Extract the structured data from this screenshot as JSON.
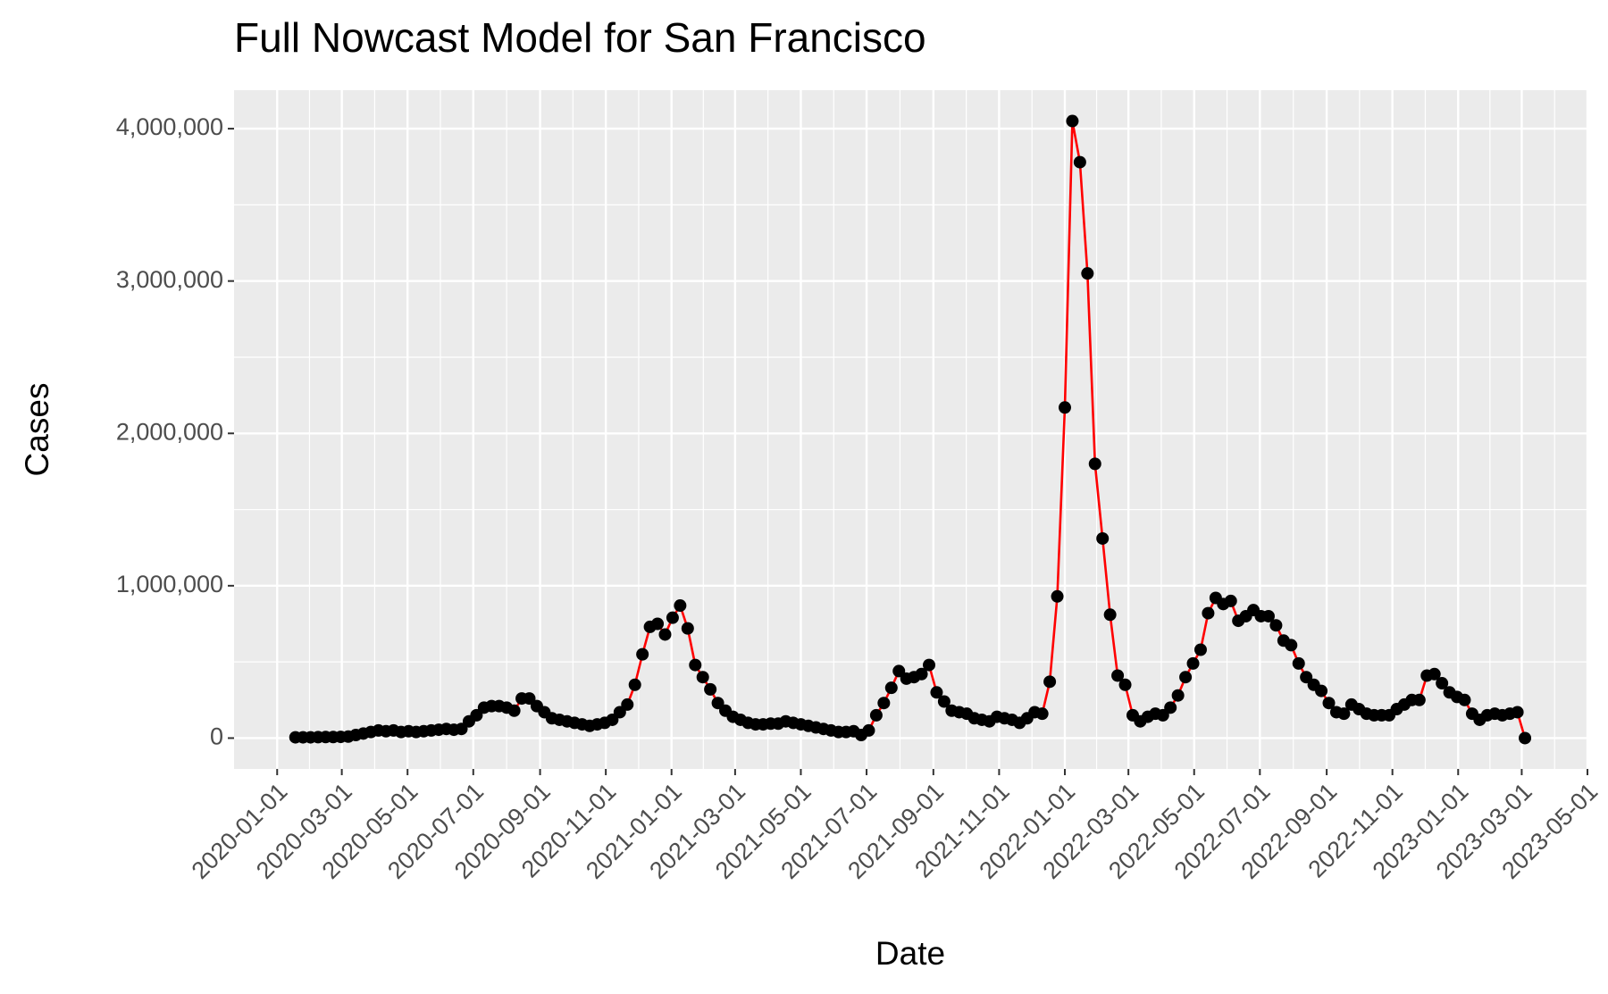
{
  "chart_data": {
    "type": "line",
    "title": "Full Nowcast Model for San Francisco",
    "x_label": "Date",
    "y_label": "Cases",
    "line_color": "#ff0000",
    "marker_color": "#000000",
    "markers": true,
    "grid": true,
    "minor_grid": true,
    "x": [
      "2020-01-18",
      "2020-01-25",
      "2020-02-01",
      "2020-02-08",
      "2020-02-15",
      "2020-02-22",
      "2020-02-29",
      "2020-03-07",
      "2020-03-14",
      "2020-03-21",
      "2020-03-28",
      "2020-04-04",
      "2020-04-11",
      "2020-04-18",
      "2020-04-25",
      "2020-05-02",
      "2020-05-09",
      "2020-05-16",
      "2020-05-23",
      "2020-05-30",
      "2020-06-06",
      "2020-06-13",
      "2020-06-20",
      "2020-06-27",
      "2020-07-04",
      "2020-07-11",
      "2020-07-18",
      "2020-07-25",
      "2020-08-01",
      "2020-08-08",
      "2020-08-15",
      "2020-08-22",
      "2020-08-29",
      "2020-09-05",
      "2020-09-12",
      "2020-09-19",
      "2020-09-26",
      "2020-10-03",
      "2020-10-10",
      "2020-10-17",
      "2020-10-24",
      "2020-10-31",
      "2020-11-07",
      "2020-11-14",
      "2020-11-21",
      "2020-11-28",
      "2020-12-05",
      "2020-12-12",
      "2020-12-19",
      "2020-12-26",
      "2021-01-02",
      "2021-01-09",
      "2021-01-16",
      "2021-01-23",
      "2021-01-30",
      "2021-02-06",
      "2021-02-13",
      "2021-02-20",
      "2021-02-27",
      "2021-03-06",
      "2021-03-13",
      "2021-03-20",
      "2021-03-27",
      "2021-04-03",
      "2021-04-10",
      "2021-04-17",
      "2021-04-24",
      "2021-05-01",
      "2021-05-08",
      "2021-05-15",
      "2021-05-22",
      "2021-05-29",
      "2021-06-05",
      "2021-06-12",
      "2021-06-19",
      "2021-06-26",
      "2021-07-03",
      "2021-07-10",
      "2021-07-17",
      "2021-07-24",
      "2021-07-31",
      "2021-08-07",
      "2021-08-14",
      "2021-08-21",
      "2021-08-28",
      "2021-09-04",
      "2021-09-11",
      "2021-09-18",
      "2021-09-25",
      "2021-10-02",
      "2021-10-09",
      "2021-10-16",
      "2021-10-23",
      "2021-10-30",
      "2021-11-06",
      "2021-11-13",
      "2021-11-20",
      "2021-11-27",
      "2021-12-04",
      "2021-12-11",
      "2021-12-18",
      "2021-12-25",
      "2022-01-01",
      "2022-01-08",
      "2022-01-15",
      "2022-01-22",
      "2022-01-29",
      "2022-02-05",
      "2022-02-12",
      "2022-02-19",
      "2022-02-26",
      "2022-03-05",
      "2022-03-12",
      "2022-03-19",
      "2022-03-26",
      "2022-04-02",
      "2022-04-09",
      "2022-04-16",
      "2022-04-23",
      "2022-04-30",
      "2022-05-07",
      "2022-05-14",
      "2022-05-21",
      "2022-05-28",
      "2022-06-04",
      "2022-06-11",
      "2022-06-18",
      "2022-06-25",
      "2022-07-02",
      "2022-07-09",
      "2022-07-16",
      "2022-07-23",
      "2022-07-30",
      "2022-08-06",
      "2022-08-13",
      "2022-08-20",
      "2022-08-27",
      "2022-09-03",
      "2022-09-10",
      "2022-09-17",
      "2022-09-24",
      "2022-10-01",
      "2022-10-08",
      "2022-10-15",
      "2022-10-22",
      "2022-10-29",
      "2022-11-05",
      "2022-11-12",
      "2022-11-19",
      "2022-11-26",
      "2022-12-03",
      "2022-12-10",
      "2022-12-17",
      "2022-12-24",
      "2022-12-31",
      "2023-01-07",
      "2023-01-14",
      "2023-01-21",
      "2023-01-28",
      "2023-02-04",
      "2023-02-11",
      "2023-02-18",
      "2023-02-25",
      "2023-03-04"
    ],
    "values": [
      5000,
      5000,
      5000,
      6000,
      7000,
      7000,
      8000,
      10000,
      20000,
      30000,
      40000,
      50000,
      45000,
      50000,
      40000,
      45000,
      40000,
      45000,
      50000,
      55000,
      60000,
      55000,
      60000,
      110000,
      150000,
      200000,
      210000,
      210000,
      200000,
      180000,
      260000,
      260000,
      210000,
      170000,
      130000,
      120000,
      110000,
      100000,
      90000,
      80000,
      90000,
      100000,
      120000,
      170000,
      220000,
      350000,
      550000,
      730000,
      750000,
      680000,
      790000,
      870000,
      720000,
      480000,
      400000,
      320000,
      230000,
      180000,
      140000,
      120000,
      100000,
      90000,
      90000,
      95000,
      95000,
      110000,
      100000,
      90000,
      80000,
      70000,
      60000,
      50000,
      40000,
      40000,
      45000,
      20000,
      50000,
      150000,
      230000,
      330000,
      440000,
      390000,
      400000,
      420000,
      480000,
      300000,
      240000,
      180000,
      170000,
      160000,
      130000,
      120000,
      110000,
      140000,
      130000,
      120000,
      100000,
      130000,
      170000,
      160000,
      370000,
      930000,
      2170000,
      4050000,
      3780000,
      3050000,
      1800000,
      1310000,
      810000,
      410000,
      350000,
      150000,
      110000,
      140000,
      160000,
      150000,
      200000,
      280000,
      400000,
      490000,
      580000,
      820000,
      920000,
      880000,
      900000,
      770000,
      800000,
      840000,
      800000,
      800000,
      740000,
      640000,
      610000,
      490000,
      400000,
      350000,
      310000,
      230000,
      170000,
      160000,
      220000,
      190000,
      160000,
      150000,
      150000,
      150000,
      190000,
      220000,
      250000,
      250000,
      410000,
      420000,
      360000,
      300000,
      270000,
      250000,
      160000,
      120000,
      150000,
      160000,
      150000,
      160000,
      170000,
      0
    ],
    "xlim": [
      "2019-11-22",
      "2023-05-01"
    ],
    "xticks": [
      "2020-01-01",
      "2020-03-01",
      "2020-05-01",
      "2020-07-01",
      "2020-09-01",
      "2020-11-01",
      "2021-01-01",
      "2021-03-01",
      "2021-05-01",
      "2021-07-01",
      "2021-09-01",
      "2021-11-01",
      "2022-01-01",
      "2022-03-01",
      "2022-05-01",
      "2022-07-01",
      "2022-09-01",
      "2022-11-01",
      "2023-01-01",
      "2023-03-01",
      "2023-05-01"
    ],
    "ylim": [
      -202500,
      4252500
    ],
    "yticks": [
      0,
      {
        "value": 1000000,
        "label": "1,000,000"
      },
      {
        "value": 2000000,
        "label": "2,000,000"
      },
      {
        "value": 3000000,
        "label": "3,000,000"
      },
      {
        "value": 4000000,
        "label": "4,000,000"
      }
    ]
  }
}
